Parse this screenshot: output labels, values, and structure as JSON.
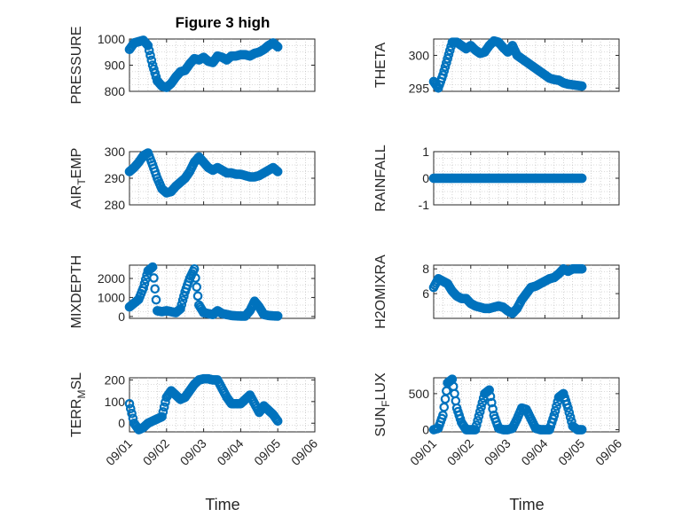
{
  "figure": {
    "title": "Figure 3 high",
    "xlabel": "Time"
  },
  "colors": {
    "marker": "#0072BD",
    "axis": "#262626",
    "grid": "#b8b8b8"
  },
  "chart_data": [
    {
      "type": "scatter",
      "ylabel": "PRESSURE",
      "ylim": [
        800,
        1000
      ],
      "yticks": [
        800,
        900,
        1000
      ],
      "xticks": [],
      "xtick_labels": [],
      "x": [
        "09/01 00:00",
        "09/01 03:00",
        "09/01 06:00",
        "09/01 09:00",
        "09/01 12:00",
        "09/01 15:00",
        "09/01 18:00",
        "09/01 21:00",
        "09/02 00:00",
        "09/02 03:00",
        "09/02 06:00",
        "09/02 09:00",
        "09/02 12:00",
        "09/02 15:00",
        "09/02 18:00",
        "09/02 21:00",
        "09/03 00:00",
        "09/03 03:00",
        "09/03 06:00",
        "09/03 09:00",
        "09/03 12:00",
        "09/03 15:00",
        "09/03 18:00",
        "09/03 21:00",
        "09/04 00:00",
        "09/04 03:00",
        "09/04 06:00",
        "09/04 09:00",
        "09/04 12:00",
        "09/04 15:00",
        "09/04 18:00",
        "09/04 21:00",
        "09/05 00:00"
      ],
      "y": [
        960,
        985,
        990,
        995,
        975,
        900,
        840,
        820,
        815,
        830,
        855,
        875,
        880,
        905,
        925,
        920,
        930,
        915,
        910,
        935,
        930,
        920,
        935,
        935,
        940,
        940,
        935,
        945,
        950,
        960,
        975,
        985,
        970
      ]
    },
    {
      "type": "scatter",
      "ylabel": "THETA",
      "ylim": [
        294.5,
        302.5
      ],
      "yticks": [
        295,
        300
      ],
      "xticks": [],
      "xtick_labels": [],
      "x": [
        "09/01 00:00",
        "09/01 03:00",
        "09/01 06:00",
        "09/01 09:00",
        "09/01 12:00",
        "09/01 15:00",
        "09/01 18:00",
        "09/01 21:00",
        "09/02 00:00",
        "09/02 03:00",
        "09/02 06:00",
        "09/02 09:00",
        "09/02 12:00",
        "09/02 15:00",
        "09/02 18:00",
        "09/02 21:00",
        "09/03 00:00",
        "09/03 03:00",
        "09/03 06:00",
        "09/03 09:00",
        "09/03 12:00",
        "09/03 15:00",
        "09/03 18:00",
        "09/03 21:00",
        "09/04 00:00",
        "09/04 03:00",
        "09/04 06:00",
        "09/04 09:00",
        "09/04 12:00",
        "09/04 15:00",
        "09/04 18:00",
        "09/04 21:00",
        "09/05 00:00"
      ],
      "y": [
        296,
        295,
        297,
        299.5,
        302,
        302,
        301.5,
        301,
        301.5,
        300.8,
        300.3,
        300.5,
        301.5,
        302.2,
        302,
        301.2,
        300.5,
        301.5,
        300,
        299.5,
        299,
        298.5,
        298,
        297.5,
        297,
        296.5,
        296.3,
        296.2,
        295.8,
        295.6,
        295.5,
        295.4,
        295.3
      ]
    },
    {
      "type": "scatter",
      "ylabel": "AIR_TEMP",
      "ylim": [
        280,
        300
      ],
      "yticks": [
        280,
        290,
        300
      ],
      "xticks": [],
      "xtick_labels": [],
      "x": [
        "09/01 00:00",
        "09/01 03:00",
        "09/01 06:00",
        "09/01 09:00",
        "09/01 12:00",
        "09/01 15:00",
        "09/01 18:00",
        "09/01 21:00",
        "09/02 00:00",
        "09/02 03:00",
        "09/02 06:00",
        "09/02 09:00",
        "09/02 12:00",
        "09/02 15:00",
        "09/02 18:00",
        "09/02 21:00",
        "09/03 00:00",
        "09/03 03:00",
        "09/03 06:00",
        "09/03 09:00",
        "09/03 12:00",
        "09/03 15:00",
        "09/03 18:00",
        "09/03 21:00",
        "09/04 00:00",
        "09/04 03:00",
        "09/04 06:00",
        "09/04 09:00",
        "09/04 12:00",
        "09/04 15:00",
        "09/04 18:00",
        "09/04 21:00",
        "09/05 00:00"
      ],
      "y": [
        292.5,
        294,
        296,
        298.5,
        299.5,
        295,
        290,
        286,
        284.5,
        285,
        287,
        288.5,
        290,
        292.5,
        296,
        298,
        296,
        294,
        293,
        294,
        293,
        292,
        292,
        291.5,
        291.5,
        291,
        290.5,
        290.5,
        291,
        292,
        293,
        294,
        292.5
      ]
    },
    {
      "type": "scatter",
      "ylabel": "RAINFALL",
      "ylim": [
        -1,
        1
      ],
      "yticks": [
        -1,
        0,
        1
      ],
      "xticks": [],
      "xtick_labels": [],
      "x": [
        "09/01 00:00",
        "09/01 03:00",
        "09/01 06:00",
        "09/01 09:00",
        "09/01 12:00",
        "09/01 15:00",
        "09/01 18:00",
        "09/01 21:00",
        "09/02 00:00",
        "09/02 03:00",
        "09/02 06:00",
        "09/02 09:00",
        "09/02 12:00",
        "09/02 15:00",
        "09/02 18:00",
        "09/02 21:00",
        "09/03 00:00",
        "09/03 03:00",
        "09/03 06:00",
        "09/03 09:00",
        "09/03 12:00",
        "09/03 15:00",
        "09/03 18:00",
        "09/03 21:00",
        "09/04 00:00",
        "09/04 03:00",
        "09/04 06:00",
        "09/04 09:00",
        "09/04 12:00",
        "09/04 15:00",
        "09/04 18:00",
        "09/04 21:00",
        "09/05 00:00"
      ],
      "y": [
        0,
        0,
        0,
        0,
        0,
        0,
        0,
        0,
        0,
        0,
        0,
        0,
        0,
        0,
        0,
        0,
        0,
        0,
        0,
        0,
        0,
        0,
        0,
        0,
        0,
        0,
        0,
        0,
        0,
        0,
        0,
        0,
        0
      ]
    },
    {
      "type": "scatter",
      "ylabel": "MIXDEPTH",
      "ylim": [
        -100,
        2700
      ],
      "yticks": [
        0,
        1000,
        2000
      ],
      "xticks": [],
      "xtick_labels": [],
      "x": [
        "09/01 00:00",
        "09/01 03:00",
        "09/01 06:00",
        "09/01 09:00",
        "09/01 12:00",
        "09/01 15:00",
        "09/01 18:00",
        "09/01 21:00",
        "09/02 00:00",
        "09/02 03:00",
        "09/02 06:00",
        "09/02 09:00",
        "09/02 12:00",
        "09/02 15:00",
        "09/02 18:00",
        "09/02 21:00",
        "09/03 00:00",
        "09/03 03:00",
        "09/03 06:00",
        "09/03 09:00",
        "09/03 12:00",
        "09/03 15:00",
        "09/03 18:00",
        "09/03 21:00",
        "09/04 00:00",
        "09/04 03:00",
        "09/04 06:00",
        "09/04 09:00",
        "09/04 12:00",
        "09/04 15:00",
        "09/04 18:00",
        "09/04 21:00",
        "09/05 00:00"
      ],
      "y": [
        500,
        700,
        900,
        1500,
        2400,
        2600,
        300,
        250,
        300,
        250,
        200,
        400,
        1300,
        2000,
        2500,
        600,
        200,
        150,
        100,
        300,
        150,
        100,
        50,
        30,
        20,
        20,
        300,
        800,
        500,
        100,
        50,
        30,
        20
      ]
    },
    {
      "type": "scatter",
      "ylabel": "H2OMIXRA",
      "ylim": [
        4,
        8.3
      ],
      "yticks": [
        6,
        8
      ],
      "xticks": [],
      "xtick_labels": [],
      "x": [
        "09/01 00:00",
        "09/01 03:00",
        "09/01 06:00",
        "09/01 09:00",
        "09/01 12:00",
        "09/01 15:00",
        "09/01 18:00",
        "09/01 21:00",
        "09/02 00:00",
        "09/02 03:00",
        "09/02 06:00",
        "09/02 09:00",
        "09/02 12:00",
        "09/02 15:00",
        "09/02 18:00",
        "09/02 21:00",
        "09/03 00:00",
        "09/03 03:00",
        "09/03 06:00",
        "09/03 09:00",
        "09/03 12:00",
        "09/03 15:00",
        "09/03 18:00",
        "09/03 21:00",
        "09/04 00:00",
        "09/04 03:00",
        "09/04 06:00",
        "09/04 09:00",
        "09/04 12:00",
        "09/04 15:00",
        "09/04 18:00",
        "09/04 21:00",
        "09/05 00:00"
      ],
      "y": [
        6.5,
        7.2,
        7.0,
        6.8,
        6.2,
        5.8,
        5.6,
        5.6,
        5.2,
        5.0,
        4.9,
        4.8,
        4.8,
        4.9,
        5.0,
        4.9,
        4.6,
        4.4,
        4.8,
        5.5,
        6.0,
        6.5,
        6.6,
        6.8,
        7.0,
        7.2,
        7.3,
        7.6,
        8.0,
        7.8,
        8.0,
        8.0,
        8.0
      ]
    },
    {
      "type": "scatter",
      "ylabel": "TERR_MSL",
      "ylim": [
        -40,
        210
      ],
      "yticks": [
        0,
        100,
        200
      ],
      "xticks": [
        0,
        1,
        2,
        3,
        4,
        5
      ],
      "xtick_labels": [
        "09/01",
        "09/02",
        "09/03",
        "09/04",
        "09/05",
        "09/06"
      ],
      "x": [
        "09/01 00:00",
        "09/01 03:00",
        "09/01 06:00",
        "09/01 09:00",
        "09/01 12:00",
        "09/01 15:00",
        "09/01 18:00",
        "09/01 21:00",
        "09/02 00:00",
        "09/02 03:00",
        "09/02 06:00",
        "09/02 09:00",
        "09/02 12:00",
        "09/02 15:00",
        "09/02 18:00",
        "09/02 21:00",
        "09/03 00:00",
        "09/03 03:00",
        "09/03 06:00",
        "09/03 09:00",
        "09/03 12:00",
        "09/03 15:00",
        "09/03 18:00",
        "09/03 21:00",
        "09/04 00:00",
        "09/04 03:00",
        "09/04 06:00",
        "09/04 09:00",
        "09/04 12:00",
        "09/04 15:00",
        "09/04 18:00",
        "09/04 21:00",
        "09/05 00:00"
      ],
      "y": [
        90,
        0,
        -30,
        -20,
        0,
        10,
        20,
        30,
        120,
        150,
        130,
        110,
        120,
        150,
        180,
        200,
        205,
        205,
        200,
        200,
        160,
        120,
        90,
        90,
        90,
        110,
        130,
        90,
        50,
        80,
        60,
        40,
        10
      ]
    },
    {
      "type": "scatter",
      "ylabel": "SUN_FLUX",
      "ylim": [
        -30,
        720
      ],
      "yticks": [
        0,
        500
      ],
      "xticks": [
        0,
        1,
        2,
        3,
        4,
        5
      ],
      "xtick_labels": [
        "09/01",
        "09/02",
        "09/03",
        "09/04",
        "09/05",
        "09/06"
      ],
      "x": [
        "09/01 00:00",
        "09/01 03:00",
        "09/01 06:00",
        "09/01 09:00",
        "09/01 12:00",
        "09/01 15:00",
        "09/01 18:00",
        "09/01 21:00",
        "09/02 00:00",
        "09/02 03:00",
        "09/02 06:00",
        "09/02 09:00",
        "09/02 12:00",
        "09/02 15:00",
        "09/02 18:00",
        "09/02 21:00",
        "09/03 00:00",
        "09/03 03:00",
        "09/03 06:00",
        "09/03 09:00",
        "09/03 12:00",
        "09/03 15:00",
        "09/03 18:00",
        "09/03 21:00",
        "09/04 00:00",
        "09/04 03:00",
        "09/04 06:00",
        "09/04 09:00",
        "09/04 12:00",
        "09/04 15:00",
        "09/04 18:00",
        "09/04 21:00",
        "09/05 00:00"
      ],
      "y": [
        0,
        20,
        200,
        650,
        700,
        300,
        100,
        0,
        0,
        0,
        250,
        500,
        550,
        200,
        20,
        0,
        0,
        20,
        150,
        300,
        280,
        150,
        20,
        0,
        0,
        0,
        200,
        450,
        500,
        300,
        50,
        0,
        0
      ]
    }
  ]
}
